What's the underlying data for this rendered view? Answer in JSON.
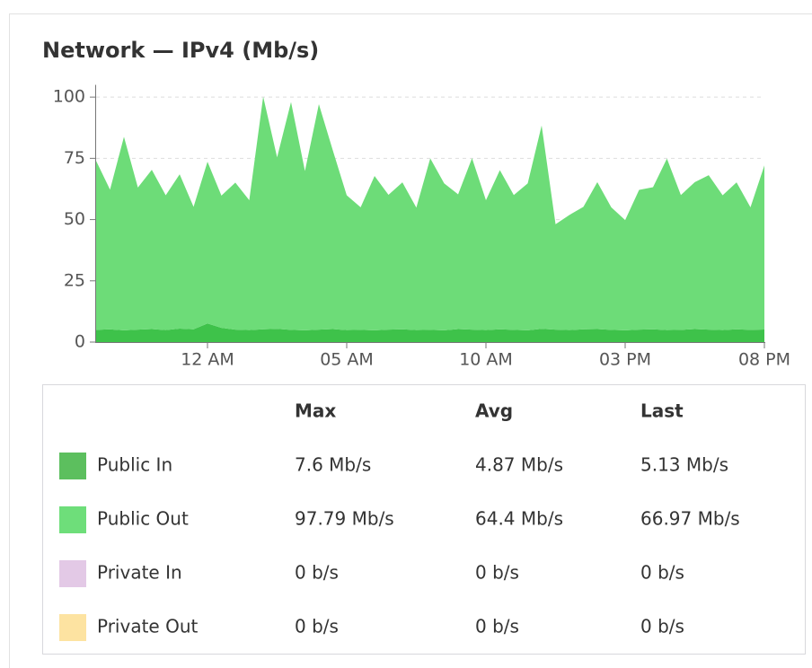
{
  "chart_data": {
    "type": "area",
    "stacked": true,
    "title": "Network — IPv4 (Mb/s)",
    "x": [
      0,
      0.5,
      1,
      1.5,
      2,
      2.5,
      3,
      3.5,
      4,
      4.5,
      5,
      5.5,
      6,
      6.5,
      7,
      7.5,
      8,
      8.5,
      9,
      9.5,
      10,
      10.5,
      11,
      11.5,
      12,
      12.5,
      13,
      13.5,
      14,
      14.5,
      15,
      15.5,
      16,
      16.5,
      17,
      17.5,
      18,
      18.5,
      19,
      19.5,
      20,
      20.5,
      21,
      21.5,
      22,
      22.5,
      23,
      23.5,
      24
    ],
    "xlim": [
      0,
      24
    ],
    "xticks": [
      {
        "value": 4,
        "label": "12 AM"
      },
      {
        "value": 9,
        "label": "05 AM"
      },
      {
        "value": 14,
        "label": "10 AM"
      },
      {
        "value": 19,
        "label": "03 PM"
      },
      {
        "value": 24,
        "label": "08 PM"
      }
    ],
    "ylim": [
      0,
      105
    ],
    "yticks": [
      0,
      25,
      50,
      75,
      100
    ],
    "grid": true,
    "series": [
      {
        "color": "#3ec24a",
        "values": [
          5,
          5.2,
          4.8,
          5.1,
          5.3,
          4.9,
          5.5,
          5.2,
          7.6,
          5.8,
          5.1,
          4.9,
          5.2,
          5.4,
          5,
          4.8,
          5.1,
          5.3,
          4.9,
          5,
          4.8,
          5.1,
          5.2,
          4.9,
          5,
          4.8,
          5.3,
          5.1,
          4.9,
          5.2,
          5,
          4.8,
          5.4,
          5.1,
          4.9,
          5.2,
          5.3,
          5,
          4.8,
          5.1,
          5.2,
          4.9,
          5,
          5.3,
          5.1,
          4.9,
          5.2,
          5,
          5.13
        ]
      },
      {
        "color": "#6ddc78",
        "values": [
          69,
          57,
          79,
          58,
          65,
          55,
          63,
          50,
          66,
          54,
          60,
          53,
          95,
          70,
          93,
          65,
          92,
          73,
          55,
          50,
          63,
          55,
          60,
          50,
          70,
          60,
          55,
          70,
          53,
          65,
          55,
          60,
          83,
          43,
          47,
          50,
          60,
          50,
          45,
          57,
          58,
          70,
          55,
          60,
          63,
          55,
          60,
          50,
          66.97
        ]
      }
    ]
  },
  "table": {
    "header": [
      "Max",
      "Avg",
      "Last"
    ],
    "rows": [
      {
        "name": "Public In",
        "color": "#5cbf5e",
        "cells": [
          "7.6 Mb/s",
          "4.87 Mb/s",
          "5.13 Mb/s"
        ]
      },
      {
        "name": "Public Out",
        "color": "#6ede7a",
        "cells": [
          "97.79 Mb/s",
          "64.4 Mb/s",
          "66.97 Mb/s"
        ]
      },
      {
        "name": "Private In",
        "color": "#e3c9e6",
        "cells": [
          "0 b/s",
          "0 b/s",
          "0 b/s"
        ]
      },
      {
        "name": "Private Out",
        "color": "#fde3a1",
        "cells": [
          "0 b/s",
          "0 b/s",
          "0 b/s"
        ]
      }
    ]
  }
}
